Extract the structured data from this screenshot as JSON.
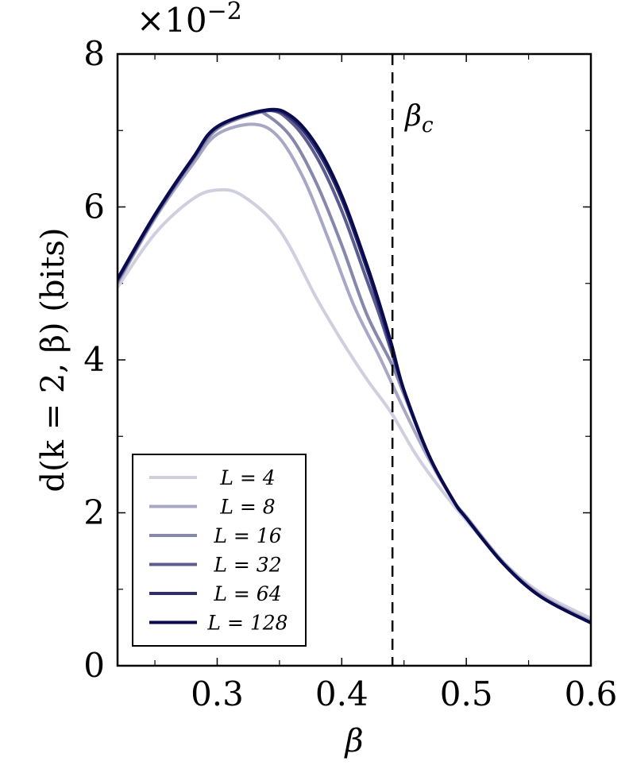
{
  "chart_data": {
    "type": "line",
    "title": "",
    "xlabel": "β",
    "ylabel": "d(k = 2, β) (bits)",
    "y_multiplier": "×10",
    "y_multiplier_exp": "−2",
    "xlim": [
      0.22,
      0.6
    ],
    "ylim": [
      0,
      8
    ],
    "x_ticks": [
      0.3,
      0.4,
      0.5,
      0.6
    ],
    "x_tick_labels": [
      "0.3",
      "0.4",
      "0.5",
      "0.6"
    ],
    "y_ticks": [
      0,
      2,
      4,
      6,
      8
    ],
    "y_tick_labels": [
      "0",
      "2",
      "4",
      "6",
      "8"
    ],
    "x_minor_ticks": [
      0.25,
      0.35,
      0.45,
      0.55
    ],
    "y_minor_ticks": [
      1,
      3,
      5,
      7
    ],
    "grid": false,
    "legend_position": "bottom-left",
    "critical_line": {
      "x": 0.4407,
      "label": "β",
      "label_sub": "c",
      "style": "dashed"
    },
    "series": [
      {
        "name": "L = 4",
        "color": "#cfcfe0",
        "x": [
          0.22,
          0.25,
          0.28,
          0.3,
          0.32,
          0.35,
          0.38,
          0.4,
          0.42,
          0.44,
          0.46,
          0.48,
          0.5,
          0.53,
          0.56,
          0.6
        ],
        "y": [
          4.95,
          5.65,
          6.1,
          6.22,
          6.15,
          5.7,
          4.8,
          4.25,
          3.75,
          3.3,
          2.75,
          2.3,
          1.9,
          1.35,
          0.95,
          0.62
        ]
      },
      {
        "name": "L = 8",
        "color": "#a8a8c6",
        "x": [
          0.22,
          0.25,
          0.28,
          0.3,
          0.33,
          0.35,
          0.37,
          0.39,
          0.41,
          0.43,
          0.44,
          0.45,
          0.47,
          0.49,
          0.5,
          0.53,
          0.56,
          0.6
        ],
        "y": [
          5.0,
          5.85,
          6.55,
          6.95,
          7.08,
          6.9,
          6.35,
          5.55,
          4.7,
          4.05,
          3.7,
          3.35,
          2.7,
          2.15,
          1.95,
          1.35,
          0.92,
          0.58
        ]
      },
      {
        "name": "L = 16",
        "color": "#8787ab",
        "x": [
          0.22,
          0.25,
          0.28,
          0.3,
          0.33,
          0.34,
          0.36,
          0.38,
          0.4,
          0.42,
          0.44,
          0.45,
          0.47,
          0.49,
          0.5,
          0.53,
          0.56,
          0.6
        ],
        "y": [
          5.02,
          5.87,
          6.6,
          7.02,
          7.22,
          7.2,
          6.9,
          6.3,
          5.5,
          4.6,
          3.95,
          3.55,
          2.75,
          2.15,
          1.93,
          1.33,
          0.9,
          0.56
        ]
      },
      {
        "name": "L = 32",
        "color": "#5c5c8e",
        "x": [
          0.22,
          0.25,
          0.28,
          0.3,
          0.34,
          0.36,
          0.38,
          0.4,
          0.42,
          0.43,
          0.44,
          0.45,
          0.47,
          0.49,
          0.5,
          0.53,
          0.56,
          0.6
        ],
        "y": [
          5.04,
          5.88,
          6.62,
          7.04,
          7.26,
          7.1,
          6.65,
          5.95,
          5.05,
          4.6,
          4.1,
          3.6,
          2.75,
          2.15,
          1.93,
          1.33,
          0.9,
          0.56
        ]
      },
      {
        "name": "L = 64",
        "color": "#2e2e70",
        "x": [
          0.22,
          0.25,
          0.28,
          0.3,
          0.34,
          0.36,
          0.38,
          0.4,
          0.42,
          0.43,
          0.44,
          0.45,
          0.47,
          0.49,
          0.5,
          0.53,
          0.56,
          0.6
        ],
        "y": [
          5.05,
          5.89,
          6.62,
          7.05,
          7.26,
          7.15,
          6.75,
          6.1,
          5.2,
          4.7,
          4.15,
          3.6,
          2.75,
          2.15,
          1.93,
          1.33,
          0.9,
          0.56
        ]
      },
      {
        "name": "L = 128",
        "color": "#0a0a4f",
        "x": [
          0.22,
          0.25,
          0.28,
          0.3,
          0.34,
          0.36,
          0.38,
          0.4,
          0.42,
          0.43,
          0.44,
          0.45,
          0.47,
          0.49,
          0.5,
          0.53,
          0.56,
          0.6
        ],
        "y": [
          5.06,
          5.9,
          6.63,
          7.05,
          7.27,
          7.18,
          6.8,
          6.15,
          5.25,
          4.75,
          4.2,
          3.6,
          2.75,
          2.15,
          1.93,
          1.33,
          0.9,
          0.56
        ]
      }
    ]
  }
}
